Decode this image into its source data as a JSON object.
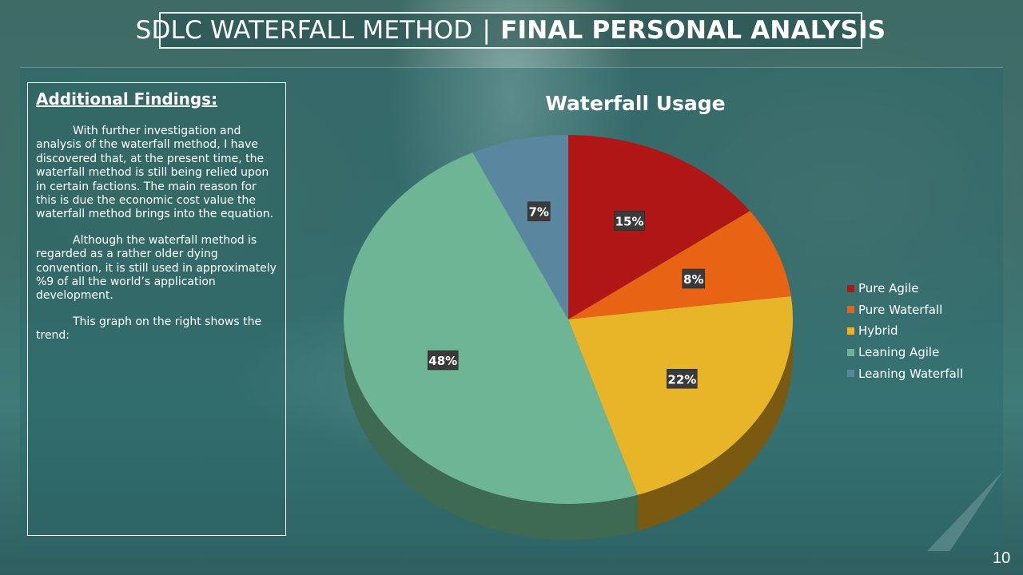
{
  "title": {
    "light": "SDLC WATERFALL METHOD",
    "separator": "|",
    "bold": "FINAL PERSONAL ANALYSIS"
  },
  "findings": {
    "heading": "Additional Findings:",
    "paragraphs": [
      "With further investigation and analysis of the waterfall method, I have discovered that, at the present time, the waterfall method is still being relied upon in certain factions. The main reason for this is due the economic cost value the waterfall method brings into the equation.",
      "Although the waterfall method is regarded as a rather older dying convention, it is still used in approximately %9 of all the world’s application development.",
      "This graph on the right shows the trend:"
    ]
  },
  "chart_data": {
    "type": "pie",
    "title": "Waterfall Usage",
    "categories": [
      "Pure Agile",
      "Pure Waterfall",
      "Hybrid",
      "Leaning Agile",
      "Leaning Waterfall"
    ],
    "values": [
      15,
      8,
      22,
      48,
      7
    ],
    "labels": [
      "15%",
      "8%",
      "22%",
      "48%",
      "7%"
    ],
    "colors": [
      "#b01616",
      "#e86414",
      "#e8b428",
      "#6db595",
      "#5a86a0"
    ],
    "side_colors": [
      "#6a0e0e",
      "#8a3c0c",
      "#7a5a10",
      "#3e6a52",
      "#334e60"
    ],
    "legend_position": "right",
    "style": "3d"
  },
  "page_number": "10"
}
